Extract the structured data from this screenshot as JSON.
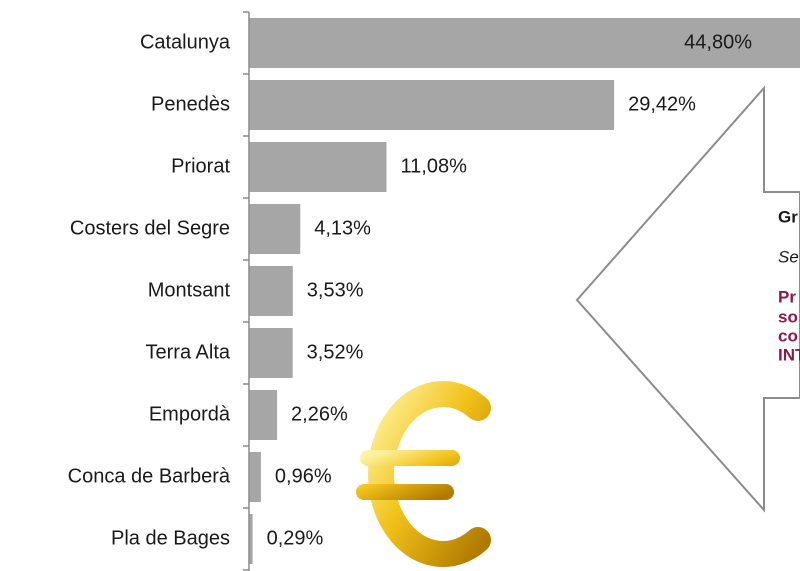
{
  "chart_data": {
    "type": "bar",
    "orientation": "horizontal",
    "categories": [
      "Catalunya",
      "Penedès",
      "Priorat",
      "Costers del Segre",
      "Montsant",
      "Terra Alta",
      "Empordà",
      "Conca de Barberà",
      "Pla de Bages"
    ],
    "values": [
      44.8,
      29.42,
      11.08,
      4.13,
      3.53,
      3.52,
      2.26,
      0.96,
      0.29
    ],
    "value_labels": [
      "44,80%",
      "29,42%",
      "11,08%",
      "4,13%",
      "3,53%",
      "3,52%",
      "2,26%",
      "0,96%",
      "0,29%"
    ],
    "color": "#a6a6a6",
    "xlim": [
      0,
      44.4
    ]
  },
  "callout": {
    "title": "Gr",
    "subtitle": "Se",
    "lines": [
      "Pr",
      "so",
      "co",
      "INT"
    ]
  }
}
